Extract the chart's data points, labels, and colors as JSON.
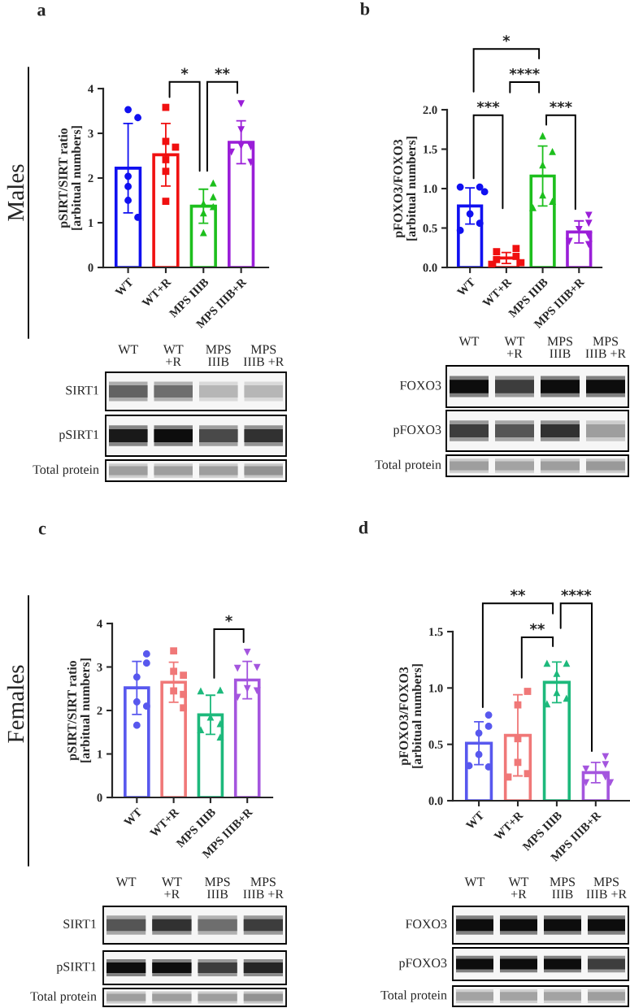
{
  "chart_data": [
    {
      "type": "bar",
      "title": "a",
      "ylabel": "pSIRT/SIRT ratio\n[arbitual numbers]",
      "categories": [
        "WT",
        "WT+R",
        "MPS IIIB",
        "MPS IIIB+R"
      ],
      "ylim": [
        0,
        4
      ],
      "yticks": [
        0,
        1,
        2,
        3,
        4
      ],
      "annotations": [
        "Males",
        "*",
        "**"
      ],
      "series": [
        {
          "type": "bar",
          "values": [
            2.22,
            2.52,
            1.37,
            2.8
          ],
          "colors": [
            "#1010f0",
            "#f01010",
            "#1dbf1d",
            "#9a1ed8"
          ],
          "errors": [
            1.0,
            0.7,
            0.38,
            0.48
          ]
        },
        {
          "type": "scatter",
          "x": [
            "WT",
            "WT",
            "WT",
            "WT",
            "WT",
            "WT"
          ],
          "values": [
            3.53,
            3.35,
            2.04,
            1.81,
            1.5,
            1.12
          ],
          "color": "#1010f0",
          "marker": "circle"
        },
        {
          "type": "scatter",
          "x": [
            "WT+R",
            "WT+R",
            "WT+R",
            "WT+R",
            "WT+R",
            "WT+R"
          ],
          "values": [
            3.58,
            2.82,
            2.69,
            2.41,
            2.15,
            1.48
          ],
          "color": "#f01010",
          "marker": "square"
        },
        {
          "type": "scatter",
          "x": [
            "MPS IIIB",
            "MPS IIIB",
            "MPS IIIB",
            "MPS IIIB",
            "MPS IIIB",
            "MPS IIIB"
          ],
          "values": [
            1.89,
            1.58,
            1.43,
            1.36,
            1.22,
            0.78
          ],
          "color": "#1dbf1d",
          "marker": "triangle"
        },
        {
          "type": "scatter",
          "x": [
            "MPS IIIB+R",
            "MPS IIIB+R",
            "MPS IIIB+R",
            "MPS IIIB+R",
            "MPS IIIB+R",
            "MPS IIIB+R"
          ],
          "values": [
            3.66,
            3.08,
            2.72,
            2.7,
            2.58,
            2.35
          ],
          "color": "#9a1ed8",
          "marker": "triangle_down"
        }
      ]
    },
    {
      "type": "other",
      "categories": [
        "WT",
        "WT\n+R",
        "MPS\nIIIB",
        "MPS\nIIIB +R"
      ],
      "annotations": [
        "SIRT1",
        "pSIRT1",
        "Total protein"
      ]
    },
    {
      "type": "bar",
      "title": "b",
      "ylabel": "pFOXO3/FOXO3\n[arbitual numbers]",
      "categories": [
        "WT",
        "WT+R",
        "MPS IIIB",
        "MPS IIIB+R"
      ],
      "ylim": [
        0,
        2
      ],
      "yticks": [
        {
          "value": 0,
          "label": "0.0"
        },
        0.5,
        {
          "value": 1,
          "label": "1.0"
        },
        1.5,
        {
          "value": 2,
          "label": "2.0"
        }
      ],
      "annotations": [
        "*",
        "****",
        "***",
        "***"
      ],
      "series": [
        {
          "type": "bar",
          "values": [
            0.78,
            0.12,
            1.16,
            0.45
          ],
          "colors": [
            "#1010f0",
            "#f01010",
            "#1dbf1d",
            "#9a1ed8"
          ],
          "errors": [
            0.23,
            0.07,
            0.38,
            0.14
          ]
        },
        {
          "type": "scatter",
          "x": [
            "WT",
            "WT",
            "WT",
            "WT",
            "WT",
            "WT"
          ],
          "values": [
            1.02,
            1.02,
            0.96,
            0.68,
            0.56,
            0.47
          ],
          "color": "#1010f0",
          "marker": "circle"
        },
        {
          "type": "scatter",
          "x": [
            "WT+R",
            "WT+R",
            "WT+R",
            "WT+R",
            "WT+R",
            "WT+R"
          ],
          "values": [
            0.24,
            0.2,
            0.14,
            0.1,
            0.06,
            0.04
          ],
          "color": "#f01010",
          "marker": "square"
        },
        {
          "type": "scatter",
          "x": [
            "MPS IIIB",
            "MPS IIIB",
            "MPS IIIB",
            "MPS IIIB",
            "MPS IIIB",
            "MPS IIIB"
          ],
          "values": [
            1.67,
            1.47,
            1.3,
            0.92,
            0.84,
            0.76
          ],
          "color": "#1dbf1d",
          "marker": "triangle"
        },
        {
          "type": "scatter",
          "x": [
            "MPS IIIB+R",
            "MPS IIIB+R",
            "MPS IIIB+R",
            "MPS IIIB+R",
            "MPS IIIB+R",
            "MPS IIIB+R"
          ],
          "values": [
            0.66,
            0.56,
            0.48,
            0.4,
            0.33,
            0.29
          ],
          "color": "#9a1ed8",
          "marker": "triangle_down"
        }
      ]
    },
    {
      "type": "other",
      "categories": [
        "WT",
        "WT\n+R",
        "MPS\nIIIB",
        "MPS\nIIIB +R"
      ],
      "annotations": [
        "FOXO3",
        "pFOXO3",
        "Total protein"
      ]
    },
    {
      "type": "bar",
      "title": "c",
      "ylabel": "pSIRT/SIRT ratio\n[arbitual numbers]",
      "categories": [
        "WT",
        "WT+R",
        "MPS IIIB",
        "MPS IIIB+R"
      ],
      "ylim": [
        0,
        4
      ],
      "yticks": [
        0,
        1,
        2,
        3,
        4
      ],
      "annotations": [
        "Females",
        "*"
      ],
      "series": [
        {
          "type": "bar",
          "values": [
            2.52,
            2.65,
            1.9,
            2.7
          ],
          "colors": [
            "#5858ee",
            "#f07878",
            "#1db97c",
            "#a455de"
          ],
          "errors": [
            0.61,
            0.46,
            0.45,
            0.43
          ]
        },
        {
          "type": "scatter",
          "x": [
            "WT",
            "WT",
            "WT",
            "WT",
            "WT",
            "WT"
          ],
          "values": [
            3.3,
            3.09,
            2.77,
            2.2,
            2.1,
            1.66
          ],
          "color": "#5858ee",
          "marker": "circle"
        },
        {
          "type": "scatter",
          "x": [
            "WT+R",
            "WT+R",
            "WT+R",
            "WT+R",
            "WT+R",
            "WT+R"
          ],
          "values": [
            3.37,
            2.9,
            2.81,
            2.45,
            2.37,
            2.06
          ],
          "color": "#f07878",
          "marker": "square"
        },
        {
          "type": "scatter",
          "x": [
            "MPS IIIB",
            "MPS IIIB",
            "MPS IIIB",
            "MPS IIIB",
            "MPS IIIB",
            "MPS IIIB"
          ],
          "values": [
            2.47,
            2.45,
            1.85,
            1.7,
            1.56,
            1.39
          ],
          "color": "#1db97c",
          "marker": "triangle"
        },
        {
          "type": "scatter",
          "x": [
            "MPS IIIB+R",
            "MPS IIIB+R",
            "MPS IIIB+R",
            "MPS IIIB+R",
            "MPS IIIB+R",
            "MPS IIIB+R"
          ],
          "values": [
            3.34,
            2.99,
            2.97,
            2.5,
            2.45,
            2.3
          ],
          "color": "#a455de",
          "marker": "triangle_down"
        }
      ]
    },
    {
      "type": "other",
      "categories": [
        "WT",
        "WT\n+R",
        "MPS\nIIIB",
        "MPS\nIIIB +R"
      ],
      "annotations": [
        "SIRT1",
        "pSIRT1",
        "Total protein"
      ]
    },
    {
      "type": "bar",
      "title": "d",
      "ylabel": "pFOXO3/FOXO3\n[arbitual numbers]",
      "categories": [
        "WT",
        "WT+R",
        "MPS IIIB",
        "MPS IIIB+R"
      ],
      "ylim": [
        0,
        1.5
      ],
      "yticks": [
        {
          "value": 0,
          "label": "0.0"
        },
        0.5,
        {
          "value": 1,
          "label": "1.0"
        },
        1.5
      ],
      "annotations": [
        "**",
        "****",
        "**"
      ],
      "series": [
        {
          "type": "bar",
          "values": [
            0.51,
            0.58,
            1.05,
            0.25
          ],
          "colors": [
            "#5858ee",
            "#f07878",
            "#1db97c",
            "#a455de"
          ],
          "errors": [
            0.19,
            0.36,
            0.18,
            0.09
          ]
        },
        {
          "type": "scatter",
          "x": [
            "WT",
            "WT",
            "WT",
            "WT",
            "WT",
            "WT"
          ],
          "values": [
            0.76,
            0.66,
            0.6,
            0.41,
            0.3,
            0.31
          ],
          "color": "#5858ee",
          "marker": "circle"
        },
        {
          "type": "scatter",
          "x": [
            "WT+R",
            "WT+R",
            "WT+R",
            "WT+R",
            "WT+R",
            "WT+R"
          ],
          "values": [
            0.97,
            0.85,
            0.55,
            0.34,
            0.24,
            0.21
          ],
          "color": "#f07878",
          "marker": "square"
        },
        {
          "type": "scatter",
          "x": [
            "MPS IIIB",
            "MPS IIIB",
            "MPS IIIB",
            "MPS IIIB",
            "MPS IIIB",
            "MPS IIIB"
          ],
          "values": [
            1.22,
            1.22,
            1.13,
            0.96,
            0.91,
            0.86
          ],
          "color": "#1db97c",
          "marker": "triangle"
        },
        {
          "type": "scatter",
          "x": [
            "MPS IIIB+R",
            "MPS IIIB+R",
            "MPS IIIB+R",
            "MPS IIIB+R",
            "MPS IIIB+R",
            "MPS IIIB+R"
          ],
          "values": [
            0.39,
            0.32,
            0.28,
            0.21,
            0.16,
            0.16
          ],
          "color": "#a455de",
          "marker": "triangle_down"
        }
      ]
    },
    {
      "type": "other",
      "categories": [
        "WT",
        "WT\n+R",
        "MPS\nIIIB",
        "MPS\nIIIB +R"
      ],
      "annotations": [
        "FOXO3",
        "pFOXO3",
        "Total protein"
      ]
    }
  ]
}
